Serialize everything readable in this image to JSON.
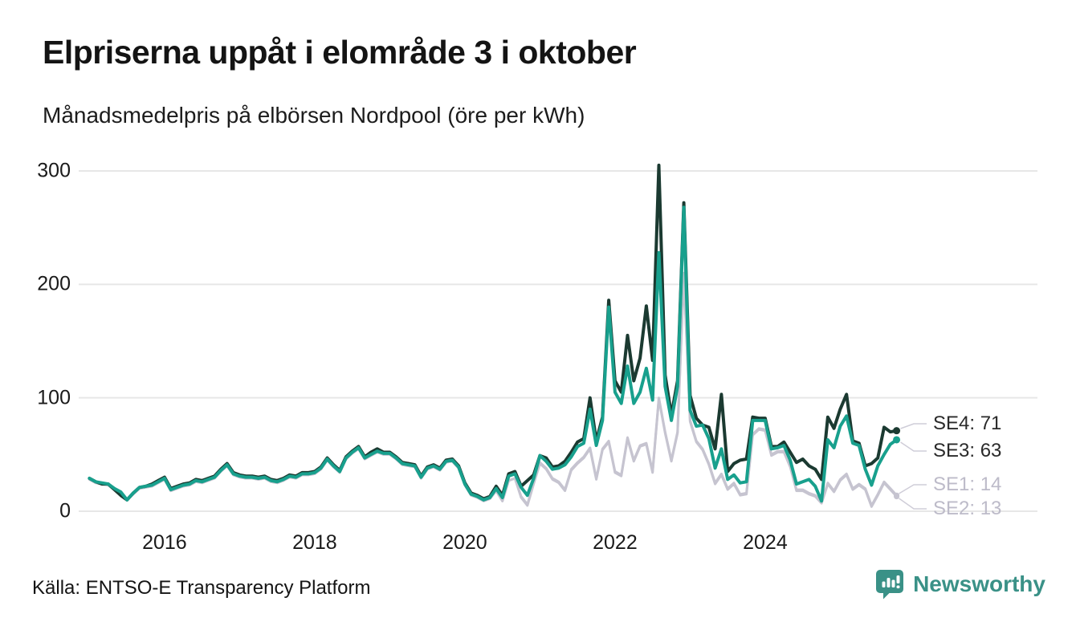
{
  "title": "Elpriserna uppåt i elområde 3 i oktober",
  "subtitle": "Månadsmedelpris på elbörsen Nordpool (öre per kWh)",
  "source": "Källa: ENTSO-E Transparency Platform",
  "brand": {
    "name": "Newsworthy",
    "color": "#3a9187",
    "icon": "bar-chart-speech-bubble-icon"
  },
  "colors": {
    "se4_line": "#1b3a31",
    "se3_line": "#18a08d",
    "se1_line": "#c6c4d0",
    "se2_line": "#c6c4d0",
    "gray_label_text": "#bdbbc9",
    "dark_label_text": "#2a2a2a",
    "gridline": "#e7e7e7",
    "leader_line": "#cfcdd8"
  },
  "chart_data": {
    "type": "line",
    "title": "Elpriserna uppåt i elområde 3 i oktober",
    "subtitle": "Månadsmedelpris på elbörsen Nordpool (öre per kWh)",
    "unit": "öre per kWh",
    "x_start": "2015-01",
    "x_end": "2025-10",
    "x_points": 130,
    "x_tick_labels": [
      "2016",
      "2018",
      "2020",
      "2022",
      "2024"
    ],
    "y_ticks": [
      0,
      100,
      200,
      300
    ],
    "ylim": [
      0,
      320
    ],
    "grid": "horizontal",
    "legend_position": "right-end-labels",
    "series": [
      {
        "name": "SE4",
        "end_label": "SE4: 71",
        "last_value": 71,
        "values": [
          29,
          26,
          24,
          24,
          19,
          14,
          10,
          16,
          21,
          22,
          24,
          27,
          30,
          20,
          22,
          24,
          25,
          28,
          27,
          29,
          31,
          37,
          42,
          34,
          32,
          31,
          31,
          30,
          31,
          28,
          27,
          29,
          32,
          31,
          34,
          34,
          35,
          39,
          47,
          41,
          36,
          48,
          53,
          57,
          48,
          52,
          55,
          52,
          52,
          48,
          43,
          42,
          41,
          31,
          39,
          41,
          38,
          45,
          46,
          40,
          25,
          16,
          14,
          11,
          13,
          22,
          14,
          33,
          35,
          22,
          27,
          32,
          49,
          47,
          39,
          40,
          44,
          52,
          61,
          64,
          100,
          62,
          83,
          186,
          115,
          105,
          155,
          115,
          135,
          181,
          133,
          305,
          120,
          85,
          115,
          272,
          102,
          82,
          76,
          74,
          55,
          103,
          35,
          42,
          45,
          46,
          83,
          82,
          82,
          57,
          57,
          61,
          52,
          43,
          46,
          40,
          37,
          28,
          83,
          73,
          90,
          103,
          62,
          60,
          40,
          42,
          47,
          74,
          70,
          71
        ]
      },
      {
        "name": "SE3",
        "end_label": "SE3: 63",
        "last_value": 63,
        "values": [
          29,
          26,
          25,
          24,
          20,
          17,
          10,
          16,
          21,
          22,
          23,
          26,
          29,
          19,
          21,
          23,
          24,
          27,
          26,
          28,
          30,
          36,
          41,
          33,
          31,
          30,
          30,
          29,
          30,
          27,
          26,
          28,
          31,
          30,
          33,
          33,
          34,
          38,
          46,
          40,
          35,
          47,
          52,
          56,
          47,
          50,
          53,
          51,
          51,
          47,
          42,
          41,
          40,
          30,
          38,
          40,
          37,
          44,
          45,
          39,
          24,
          15,
          13,
          10,
          12,
          20,
          12,
          31,
          33,
          21,
          14,
          29,
          49,
          44,
          37,
          38,
          41,
          48,
          57,
          60,
          90,
          58,
          80,
          180,
          105,
          95,
          128,
          95,
          105,
          126,
          98,
          228,
          110,
          80,
          110,
          268,
          89,
          75,
          76,
          64,
          38,
          55,
          28,
          32,
          25,
          26,
          80,
          80,
          80,
          55,
          56,
          58,
          45,
          24,
          26,
          28,
          22,
          9,
          63,
          56,
          75,
          84,
          60,
          58,
          37,
          23,
          40,
          50,
          59,
          63
        ]
      },
      {
        "name": "SE1",
        "end_label": "SE1: 14",
        "last_value": 14,
        "values": [
          28,
          25,
          24,
          23,
          19,
          16,
          10,
          15,
          20,
          21,
          22,
          25,
          28,
          18,
          20,
          22,
          23,
          26,
          25,
          27,
          29,
          35,
          40,
          32,
          30,
          29,
          29,
          28,
          29,
          26,
          25,
          27,
          30,
          29,
          32,
          32,
          33,
          37,
          45,
          39,
          34,
          46,
          51,
          55,
          46,
          49,
          52,
          50,
          50,
          46,
          41,
          40,
          39,
          29,
          37,
          39,
          36,
          43,
          44,
          38,
          23,
          14,
          12,
          9,
          11,
          18,
          9,
          27,
          29,
          13,
          6,
          25,
          43,
          38,
          29,
          26,
          19,
          37,
          43,
          48,
          56,
          29,
          55,
          62,
          35,
          32,
          65,
          45,
          58,
          60,
          35,
          100,
          70,
          45,
          70,
          210,
          80,
          62,
          55,
          42,
          25,
          33,
          20,
          25,
          15,
          16,
          68,
          73,
          72,
          50,
          53,
          53,
          40,
          19,
          19,
          16,
          14,
          8,
          25,
          18,
          28,
          33,
          20,
          24,
          20,
          5,
          15,
          26,
          20,
          14
        ]
      },
      {
        "name": "SE2",
        "end_label": "SE2: 13",
        "last_value": 13,
        "values": [
          28,
          25,
          24,
          23,
          19,
          16,
          10,
          15,
          20,
          21,
          22,
          25,
          28,
          18,
          20,
          22,
          23,
          26,
          25,
          27,
          29,
          35,
          40,
          32,
          30,
          29,
          29,
          28,
          29,
          26,
          25,
          27,
          30,
          29,
          32,
          32,
          33,
          37,
          45,
          39,
          34,
          46,
          51,
          55,
          46,
          49,
          52,
          50,
          50,
          46,
          41,
          40,
          39,
          29,
          37,
          39,
          36,
          43,
          44,
          38,
          23,
          14,
          12,
          9,
          11,
          18,
          9,
          27,
          29,
          12,
          5,
          24,
          42,
          37,
          28,
          25,
          18,
          36,
          42,
          47,
          55,
          28,
          54,
          61,
          34,
          31,
          64,
          44,
          57,
          59,
          34,
          99,
          69,
          44,
          69,
          208,
          79,
          61,
          54,
          41,
          24,
          32,
          19,
          24,
          14,
          15,
          67,
          72,
          71,
          49,
          52,
          52,
          39,
          18,
          18,
          15,
          13,
          7,
          24,
          17,
          27,
          32,
          19,
          23,
          19,
          4,
          14,
          25,
          19,
          13
        ]
      }
    ]
  }
}
